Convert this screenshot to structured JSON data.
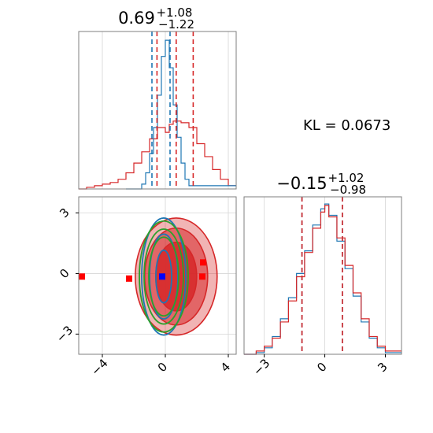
{
  "chart_data": {
    "type": "corner",
    "kl_annotation": "KL = 0.0673",
    "colors": {
      "series_red": "#d62728",
      "series_blue": "#1f77b4",
      "ellipse_green": "#2ca02c",
      "marker_red": "#ff0000",
      "marker_blue": "#0000ff"
    },
    "params": [
      {
        "title_main": "0.69",
        "title_sup": "+1.08",
        "title_sub": "−1.22",
        "range": [
          -5.5,
          4.5
        ],
        "red_quantiles": [
          -0.53,
          0.69,
          1.77
        ],
        "blue_quantiles": [
          -0.85,
          0.3
        ]
      },
      {
        "title_main": "−0.15",
        "title_sup": "+1.02",
        "title_sub": "−0.98",
        "range": [
          -4.0,
          3.8
        ],
        "red_quantiles": [
          -1.13,
          0.87
        ],
        "blue_quantiles": [
          -1.13,
          0.87
        ]
      }
    ],
    "x_ticks_param1": [
      {
        "value": -4,
        "label": "−4"
      },
      {
        "value": 0,
        "label": "0"
      },
      {
        "value": 4,
        "label": "4"
      }
    ],
    "x_ticks_param2": [
      {
        "value": -3,
        "label": "−3"
      },
      {
        "value": 0,
        "label": "0"
      },
      {
        "value": 3,
        "label": "3"
      }
    ],
    "y_ticks_joint": [
      {
        "value": 3,
        "label": "3"
      },
      {
        "value": 0,
        "label": "0"
      },
      {
        "value": -3,
        "label": "−3"
      }
    ],
    "marginal1_red_bins": [
      [
        -5.5,
        0
      ],
      [
        -5.0,
        0.01
      ],
      [
        -4.5,
        0.02
      ],
      [
        -4.0,
        0.03
      ],
      [
        -3.5,
        0.04
      ],
      [
        -3.0,
        0.06
      ],
      [
        -2.5,
        0.1
      ],
      [
        -2.0,
        0.16
      ],
      [
        -1.5,
        0.23
      ],
      [
        -1.0,
        0.31
      ],
      [
        -0.5,
        0.38
      ],
      [
        0.0,
        0.35
      ],
      [
        0.25,
        0.4
      ],
      [
        0.5,
        0.42
      ],
      [
        1.0,
        0.41
      ],
      [
        1.5,
        0.38
      ],
      [
        2.0,
        0.28
      ],
      [
        2.5,
        0.2
      ],
      [
        3.0,
        0.12
      ],
      [
        3.5,
        0.06
      ],
      [
        4.0,
        0.02
      ]
    ],
    "marginal1_blue_bins": [
      [
        -2.5,
        0
      ],
      [
        -1.5,
        0.03
      ],
      [
        -1.25,
        0.1
      ],
      [
        -1.0,
        0.22
      ],
      [
        -0.75,
        0.38
      ],
      [
        -0.5,
        0.58
      ],
      [
        -0.25,
        0.82
      ],
      [
        0.0,
        0.92
      ],
      [
        0.25,
        0.75
      ],
      [
        0.5,
        0.52
      ],
      [
        0.75,
        0.32
      ],
      [
        1.0,
        0.16
      ],
      [
        1.25,
        0.06
      ],
      [
        1.5,
        0.02
      ]
    ],
    "marginal2_red_bins": [
      [
        -4.0,
        0
      ],
      [
        -3.4,
        0.02
      ],
      [
        -3.0,
        0.05
      ],
      [
        -2.6,
        0.1
      ],
      [
        -2.2,
        0.2
      ],
      [
        -1.8,
        0.33
      ],
      [
        -1.4,
        0.48
      ],
      [
        -1.0,
        0.63
      ],
      [
        -0.6,
        0.78
      ],
      [
        -0.2,
        0.88
      ],
      [
        0.0,
        0.92
      ],
      [
        0.2,
        0.85
      ],
      [
        0.6,
        0.72
      ],
      [
        1.0,
        0.55
      ],
      [
        1.4,
        0.38
      ],
      [
        1.8,
        0.22
      ],
      [
        2.2,
        0.11
      ],
      [
        2.6,
        0.05
      ],
      [
        3.0,
        0.02
      ]
    ],
    "marginal2_blue_bins": [
      [
        -4.0,
        0
      ],
      [
        -3.4,
        0.01
      ],
      [
        -3.0,
        0.04
      ],
      [
        -2.6,
        0.11
      ],
      [
        -2.2,
        0.22
      ],
      [
        -1.8,
        0.35
      ],
      [
        -1.4,
        0.5
      ],
      [
        -1.0,
        0.64
      ],
      [
        -0.6,
        0.8
      ],
      [
        -0.2,
        0.9
      ],
      [
        0.0,
        0.93
      ],
      [
        0.2,
        0.86
      ],
      [
        0.6,
        0.7
      ],
      [
        1.0,
        0.53
      ],
      [
        1.4,
        0.36
      ],
      [
        1.8,
        0.2
      ],
      [
        2.2,
        0.1
      ],
      [
        2.6,
        0.04
      ],
      [
        3.0,
        0.01
      ]
    ],
    "joint_red_contours": [
      {
        "center": [
          0.69,
          -0.15
        ],
        "radii": [
          2.6,
          2.9
        ],
        "fill_opacity": 0.35
      },
      {
        "center": [
          0.69,
          -0.15
        ],
        "radii": [
          2.0,
          2.4
        ],
        "fill_opacity": 0.55
      },
      {
        "center": [
          0.69,
          -0.15
        ],
        "radii": [
          1.3,
          1.7
        ],
        "fill_opacity": 0.85
      }
    ],
    "joint_blue_contours": [
      {
        "center": [
          -0.1,
          -0.15
        ],
        "radii": [
          1.4,
          2.9
        ]
      },
      {
        "center": [
          -0.1,
          -0.15
        ],
        "radii": [
          0.9,
          2.1
        ]
      },
      {
        "center": [
          -0.1,
          -0.15
        ],
        "radii": [
          0.5,
          1.3
        ]
      }
    ],
    "joint_green_ellipses": [
      {
        "center": [
          -0.1,
          -0.15
        ],
        "radii": [
          1.55,
          2.75
        ]
      },
      {
        "center": [
          -0.1,
          -0.15
        ],
        "radii": [
          1.25,
          2.35
        ]
      },
      {
        "center": [
          -0.1,
          -0.15
        ],
        "radii": [
          0.95,
          1.95
        ]
      }
    ],
    "red_markers": [
      {
        "x": -5.3,
        "y": -0.15
      },
      {
        "x": -2.3,
        "y": -0.25
      },
      {
        "x": 2.4,
        "y": 0.55
      },
      {
        "x": 2.35,
        "y": -0.15
      }
    ],
    "blue_markers": [
      {
        "x": -0.2,
        "y": -0.15
      }
    ]
  }
}
